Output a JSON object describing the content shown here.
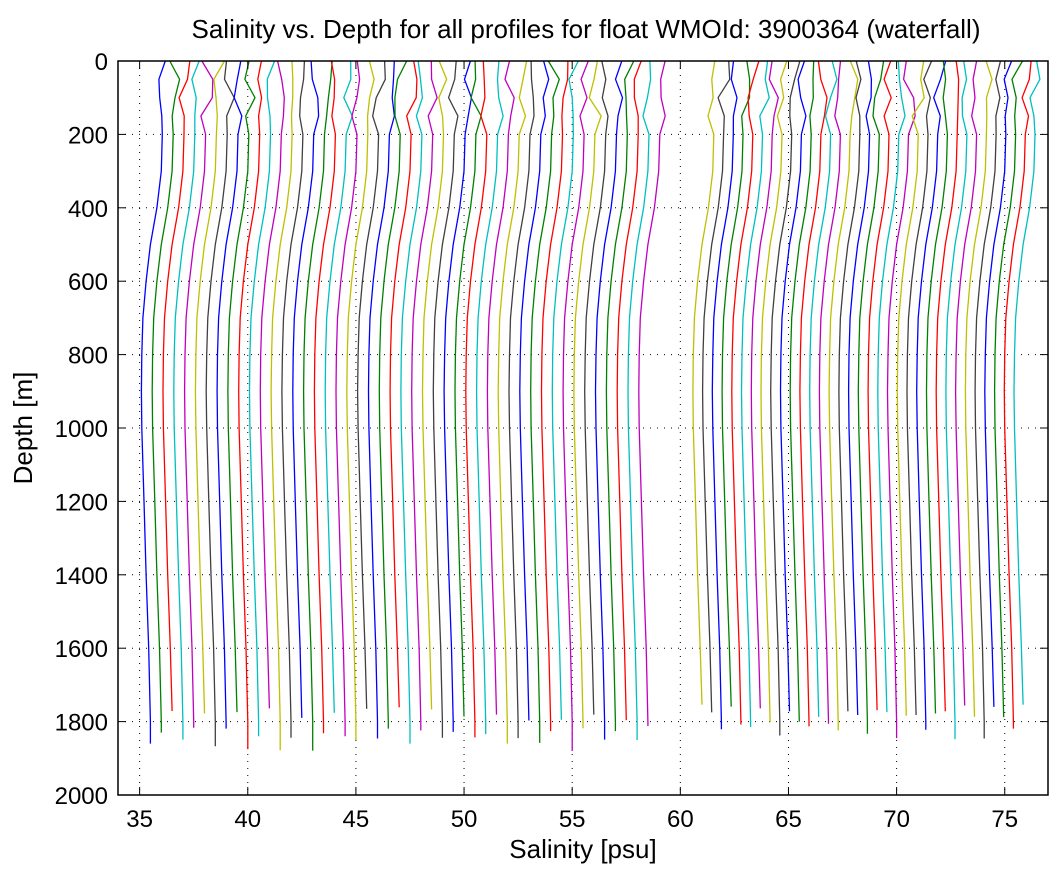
{
  "chart_data": {
    "type": "line",
    "title": "Salinity vs. Depth for all profiles for float WMOId: 3900364 (waterfall)",
    "xlabel": "Salinity [psu]",
    "ylabel": "Depth [m]",
    "xlim": [
      34,
      77
    ],
    "ylim": [
      2000,
      0
    ],
    "y_reversed": true,
    "x_ticks": [
      35,
      40,
      45,
      50,
      55,
      60,
      65,
      70,
      75
    ],
    "y_ticks": [
      0,
      200,
      400,
      600,
      800,
      1000,
      1200,
      1400,
      1600,
      1800,
      2000
    ],
    "x_tick_labels": [
      "35",
      "40",
      "45",
      "50",
      "55",
      "60",
      "65",
      "70",
      "75"
    ],
    "y_tick_labels": [
      "0",
      "200",
      "400",
      "600",
      "800",
      "1000",
      "1200",
      "1400",
      "1600",
      "1800",
      "2000"
    ],
    "grid": "dotted",
    "color_cycle": [
      "#0000ff",
      "#008000",
      "#ff0000",
      "#00bfbf",
      "#bf00bf",
      "#bfbf00",
      "#404040"
    ],
    "profile_template": {
      "depths": [
        0,
        50,
        100,
        150,
        200,
        300,
        400,
        500,
        600,
        700,
        800,
        900,
        1000,
        1200,
        1400,
        1600,
        1800
      ],
      "offsets": [
        0.45,
        0.42,
        0.38,
        0.36,
        0.35,
        0.3,
        0.1,
        -0.2,
        -0.4,
        -0.55,
        -0.6,
        -0.62,
        -0.6,
        -0.5,
        -0.4,
        -0.28,
        -0.2
      ]
    },
    "series_groups": [
      {
        "start_salinity": 35.7,
        "spacing": 0.5,
        "count": 47,
        "max_depth": [
          1860,
          1830,
          1780
        ]
      },
      {
        "start_salinity": 61.2,
        "spacing": 0.45,
        "count": 34,
        "max_depth": [
          1770,
          1790,
          1830
        ]
      }
    ]
  }
}
